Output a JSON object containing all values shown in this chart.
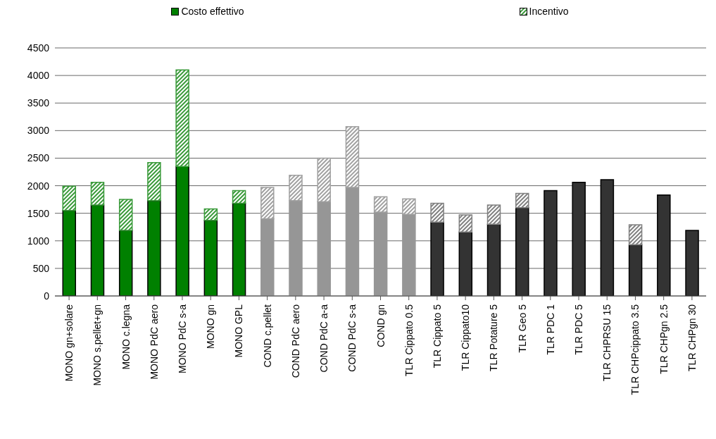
{
  "chart_data": {
    "type": "bar",
    "stacked": true,
    "categories": [
      "MONO gn+solare",
      "MONO s.pellet+gn",
      "MONO c.legna",
      "MONO PdC aero",
      "MONO PdC s-a",
      "MONO gn",
      "MONO GPL",
      "COND c.pellet",
      "COND PdC aero",
      "COND PdC a-a",
      "COND PdC s-a",
      "COND gn",
      "TLR Cippato 0.5",
      "TLR Cippato 5",
      "TLR Cippato10",
      "TLR Potature 5",
      "TLR Geo 5",
      "TLR PDC 1",
      "TLR PDC 5",
      "TLR CHPRSU 15",
      "TLR CHPcippato 3.5",
      "TLR CHPgn 2.5",
      "TLR CHPgn 30"
    ],
    "series": [
      {
        "name": "Costo effettivo",
        "colors": [
          "#008000",
          "#008000",
          "#008000",
          "#008000",
          "#008000",
          "#008000",
          "#008000",
          "#969696",
          "#969696",
          "#969696",
          "#969696",
          "#969696",
          "#969696",
          "#333333",
          "#333333",
          "#333333",
          "#333333",
          "#333333",
          "#333333",
          "#333333",
          "#333333",
          "#333333",
          "#333333"
        ],
        "values": [
          1550,
          1650,
          1190,
          1730,
          2350,
          1370,
          1680,
          1400,
          1730,
          1710,
          1970,
          1520,
          1480,
          1340,
          1160,
          1300,
          1600,
          1910,
          2060,
          2110,
          930,
          1830,
          1190
        ]
      },
      {
        "name": "Incentivo",
        "colors": [
          "#3a9a3a",
          "#3a9a3a",
          "#3a9a3a",
          "#3a9a3a",
          "#3a9a3a",
          "#3a9a3a",
          "#3a9a3a",
          "#a0a0a0",
          "#a0a0a0",
          "#a0a0a0",
          "#a0a0a0",
          "#a0a0a0",
          "#a0a0a0",
          "#808080",
          "#808080",
          "#808080",
          "#808080",
          "#808080",
          "#808080",
          "#808080",
          "#808080",
          "#808080",
          "#808080"
        ],
        "values": [
          440,
          410,
          560,
          690,
          1750,
          210,
          230,
          570,
          460,
          790,
          1100,
          280,
          280,
          340,
          310,
          350,
          260,
          0,
          0,
          0,
          360,
          0,
          0
        ]
      }
    ],
    "ylim": [
      0,
      4500
    ],
    "yticks": [
      0,
      500,
      1000,
      1500,
      2000,
      2500,
      3000,
      3500,
      4000,
      4500
    ],
    "grid": "y",
    "legend": "top"
  }
}
